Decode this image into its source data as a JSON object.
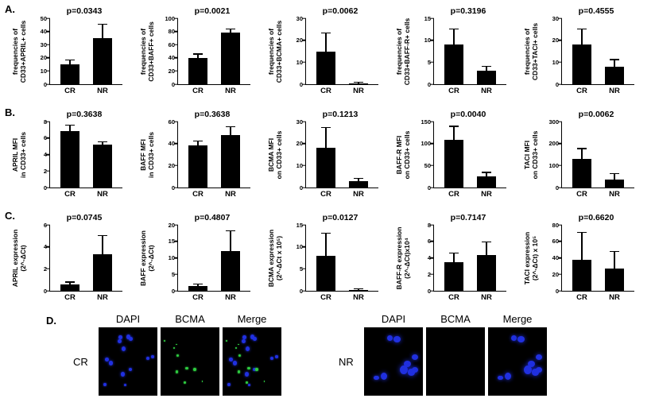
{
  "figure": {
    "background": "#ffffff",
    "panel_labels": {
      "a": "A.",
      "b": "B.",
      "c": "C.",
      "d": "D."
    }
  },
  "colors": {
    "bar": "#000000",
    "axis": "#000000",
    "dapi_blue": "#2030e0",
    "bcma_green": "#2ecc40"
  },
  "chart_data": [
    {
      "id": "april-frequency",
      "panel": "A",
      "type": "bar",
      "p_value": "p=0.0343",
      "ylabel": "frequencies of CD33+APRIL+ cells",
      "ylabel_lines": [
        "frequencies of",
        "CD33+APRIL+ cells"
      ],
      "categories": [
        "CR",
        "NR"
      ],
      "values": [
        15,
        35
      ],
      "errors": [
        3,
        10
      ],
      "ylim": [
        0,
        50
      ],
      "yticks": [
        0,
        10,
        20,
        30,
        40,
        50
      ]
    },
    {
      "id": "baff-frequency",
      "panel": "A",
      "type": "bar",
      "p_value": "p=0.0021",
      "ylabel": "frequencies of CD33+BAFF+ cells",
      "ylabel_lines": [
        "frequencies of",
        "CD33+BAFF+ cells"
      ],
      "categories": [
        "CR",
        "NR"
      ],
      "values": [
        40,
        78
      ],
      "errors": [
        5,
        5
      ],
      "ylim": [
        0,
        100
      ],
      "yticks": [
        0,
        20,
        40,
        60,
        80,
        100
      ]
    },
    {
      "id": "bcma-frequency",
      "panel": "A",
      "type": "bar",
      "p_value": "p=0.0062",
      "ylabel": "frequencies of CD33+BCMA+ cells",
      "ylabel_lines": [
        "frequencies of",
        "CD33+BCMA+ cells"
      ],
      "categories": [
        "CR",
        "NR"
      ],
      "values": [
        15,
        0.4
      ],
      "errors": [
        8,
        0.3
      ],
      "ylim": [
        0,
        30
      ],
      "yticks": [
        0,
        10,
        20,
        30
      ]
    },
    {
      "id": "baffr-frequency",
      "panel": "A",
      "type": "bar",
      "p_value": "p=0.3196",
      "ylabel": "frequencies of CD33+BAFF-R+ cells",
      "ylabel_lines": [
        "frequencies of",
        "CD33+BAFF-R+ cells"
      ],
      "categories": [
        "CR",
        "NR"
      ],
      "values": [
        9,
        3
      ],
      "errors": [
        3.5,
        1
      ],
      "ylim": [
        0,
        15
      ],
      "yticks": [
        0,
        5,
        10,
        15
      ]
    },
    {
      "id": "taci-frequency",
      "panel": "A",
      "type": "bar",
      "p_value": "p=0.4555",
      "ylabel": "frequencies of CD33+TACI+ cells",
      "ylabel_lines": [
        "frequencies of",
        "CD33+TACI+ cells"
      ],
      "categories": [
        "CR",
        "NR"
      ],
      "values": [
        18,
        8
      ],
      "errors": [
        7,
        3
      ],
      "ylim": [
        0,
        30
      ],
      "yticks": [
        0,
        10,
        20,
        30
      ]
    },
    {
      "id": "april-mfi",
      "panel": "B",
      "type": "bar",
      "p_value": "p=0.3638",
      "ylabel": "APRIL MFI in CD33+ cells",
      "ylabel_lines": [
        "APRIL MFI",
        "in CD33+ cells"
      ],
      "categories": [
        "CR",
        "NR"
      ],
      "values": [
        6.8,
        5.2
      ],
      "errors": [
        0.7,
        0.3
      ],
      "ylim": [
        0,
        8
      ],
      "yticks": [
        0,
        2,
        4,
        6,
        8
      ]
    },
    {
      "id": "baff-mfi",
      "panel": "B",
      "type": "bar",
      "p_value": "p=0.3638",
      "ylabel": "BAFF MFI in CD33+ cells",
      "ylabel_lines": [
        "BAFF MFI",
        "in CD33+ cells"
      ],
      "categories": [
        "CR",
        "NR"
      ],
      "values": [
        38,
        48
      ],
      "errors": [
        4,
        7
      ],
      "ylim": [
        0,
        60
      ],
      "yticks": [
        0,
        20,
        40,
        60
      ]
    },
    {
      "id": "bcma-mfi",
      "panel": "B",
      "type": "bar",
      "p_value": "p=0.1213",
      "ylabel": "BCMA MFI on CD33+ cells",
      "ylabel_lines": [
        "BCMA MFI",
        "on CD33+ cells"
      ],
      "categories": [
        "CR",
        "NR"
      ],
      "values": [
        18,
        3
      ],
      "errors": [
        9,
        1
      ],
      "ylim": [
        0,
        30
      ],
      "yticks": [
        0,
        10,
        20,
        30
      ]
    },
    {
      "id": "baffr-mfi",
      "panel": "B",
      "type": "bar",
      "p_value": "p=0.0040",
      "ylabel": "BAFF-R MFI on CD33+ cells",
      "ylabel_lines": [
        "BAFF-R MFI",
        "on CD33+ cells"
      ],
      "categories": [
        "CR",
        "NR"
      ],
      "values": [
        108,
        25
      ],
      "errors": [
        30,
        8
      ],
      "ylim": [
        0,
        150
      ],
      "yticks": [
        0,
        50,
        100,
        150
      ]
    },
    {
      "id": "taci-mfi",
      "panel": "B",
      "type": "bar",
      "p_value": "p=0.0062",
      "ylabel": "TACI MFI on CD33+ cells",
      "ylabel_lines": [
        "TACI MFI",
        "on CD33+ cells"
      ],
      "categories": [
        "CR",
        "NR"
      ],
      "values": [
        130,
        35
      ],
      "errors": [
        45,
        25
      ],
      "ylim": [
        0,
        300
      ],
      "yticks": [
        0,
        100,
        200,
        300
      ]
    },
    {
      "id": "april-expression",
      "panel": "C",
      "type": "bar",
      "p_value": "p=0.0745",
      "ylabel": "APRIL expression (2^-ΔCt)",
      "ylabel_lines": [
        "APRIL expression",
        "(2^-ΔCt)"
      ],
      "categories": [
        "CR",
        "NR"
      ],
      "values": [
        0.6,
        3.3
      ],
      "errors": [
        0.15,
        1.7
      ],
      "ylim": [
        0,
        6
      ],
      "yticks": [
        0,
        2,
        4,
        6
      ]
    },
    {
      "id": "baff-expression",
      "panel": "C",
      "type": "bar",
      "p_value": "p=0.4807",
      "ylabel": "BAFF expression (2^-ΔCt)",
      "ylabel_lines": [
        "BAFF expression",
        "(2^-ΔCt)"
      ],
      "categories": [
        "CR",
        "NR"
      ],
      "values": [
        1.5,
        12
      ],
      "errors": [
        0.4,
        6
      ],
      "ylim": [
        0,
        20
      ],
      "yticks": [
        0,
        5,
        10,
        15,
        20
      ]
    },
    {
      "id": "bcma-expression",
      "panel": "C",
      "type": "bar",
      "p_value": "p=0.0127",
      "ylabel": "BCMA expression (2^-ΔCt x 10⁵)",
      "ylabel_lines": [
        "BCMA expression",
        "(2^-ΔCt x 10⁵)"
      ],
      "categories": [
        "CR",
        "NR"
      ],
      "values": [
        8,
        0.2
      ],
      "errors": [
        5,
        0.1
      ],
      "ylim": [
        0,
        15
      ],
      "yticks": [
        0,
        5,
        10,
        15
      ]
    },
    {
      "id": "baffr-expression",
      "panel": "C",
      "type": "bar",
      "p_value": "p=0.7147",
      "ylabel": "BAFF-R expression (2^-ΔCt)x10⁴",
      "ylabel_lines": [
        "BAFF-R expression",
        "(2^-ΔCt)x10⁴"
      ],
      "categories": [
        "CR",
        "NR"
      ],
      "values": [
        3.5,
        4.3
      ],
      "errors": [
        1,
        1.6
      ],
      "ylim": [
        0,
        8
      ],
      "yticks": [
        0,
        2,
        4,
        6,
        8
      ]
    },
    {
      "id": "taci-expression",
      "panel": "C",
      "type": "bar",
      "p_value": "p=0.6620",
      "ylabel": "TACI expression (2^-ΔCt) x 10⁵",
      "ylabel_lines": [
        "TACI expression",
        "(2^-ΔCt) x 10⁵"
      ],
      "categories": [
        "CR",
        "NR"
      ],
      "values": [
        38,
        27
      ],
      "errors": [
        32,
        20
      ],
      "ylim": [
        0,
        80
      ],
      "yticks": [
        0,
        20,
        40,
        60,
        80
      ]
    }
  ],
  "panel_d": {
    "label": "D.",
    "column_headers": [
      "DAPI",
      "BCMA",
      "Merge"
    ],
    "groups": [
      {
        "row_label": "CR",
        "images": [
          {
            "name": "cr-dapi",
            "signal": "DAPI nuclei (blue)",
            "layers": [
              {
                "color": "dapi_blue",
                "count": 13,
                "seed": 7,
                "min": 3,
                "max": 7
              }
            ]
          },
          {
            "name": "cr-bcma",
            "signal": "BCMA sparse (green)",
            "layers": [
              {
                "color": "bcma_green",
                "count": 9,
                "seed": 19,
                "min": 1.5,
                "max": 3.5
              }
            ]
          },
          {
            "name": "cr-merge",
            "signal": "merge blue+green",
            "layers": [
              {
                "color": "dapi_blue",
                "count": 13,
                "seed": 7,
                "min": 3,
                "max": 7
              },
              {
                "color": "bcma_green",
                "count": 9,
                "seed": 19,
                "min": 1.5,
                "max": 3.5
              }
            ]
          }
        ]
      },
      {
        "row_label": "NR",
        "images": [
          {
            "name": "nr-dapi",
            "signal": "DAPI nuclei (blue)",
            "layers": [
              {
                "color": "dapi_blue",
                "count": 9,
                "seed": 33,
                "min": 6,
                "max": 10
              }
            ]
          },
          {
            "name": "nr-bcma",
            "signal": "no signal",
            "layers": []
          },
          {
            "name": "nr-merge",
            "signal": "merge blue only",
            "layers": [
              {
                "color": "dapi_blue",
                "count": 9,
                "seed": 33,
                "min": 6,
                "max": 10
              }
            ]
          }
        ]
      }
    ]
  }
}
